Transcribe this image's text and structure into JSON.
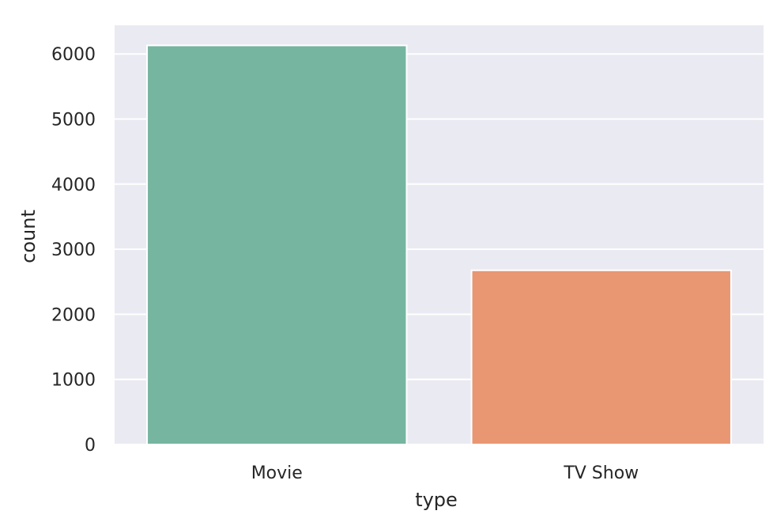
{
  "chart_data": {
    "type": "bar",
    "categories": [
      "Movie",
      "TV Show"
    ],
    "values": [
      6131,
      2676
    ],
    "xlabel": "type",
    "ylabel": "count",
    "ylim": [
      0,
      6440
    ],
    "yticks": [
      0,
      1000,
      2000,
      3000,
      4000,
      5000,
      6000
    ],
    "grid": true,
    "colors": [
      "#76b5a0",
      "#e99673"
    ],
    "background": "#eaeaf2"
  }
}
